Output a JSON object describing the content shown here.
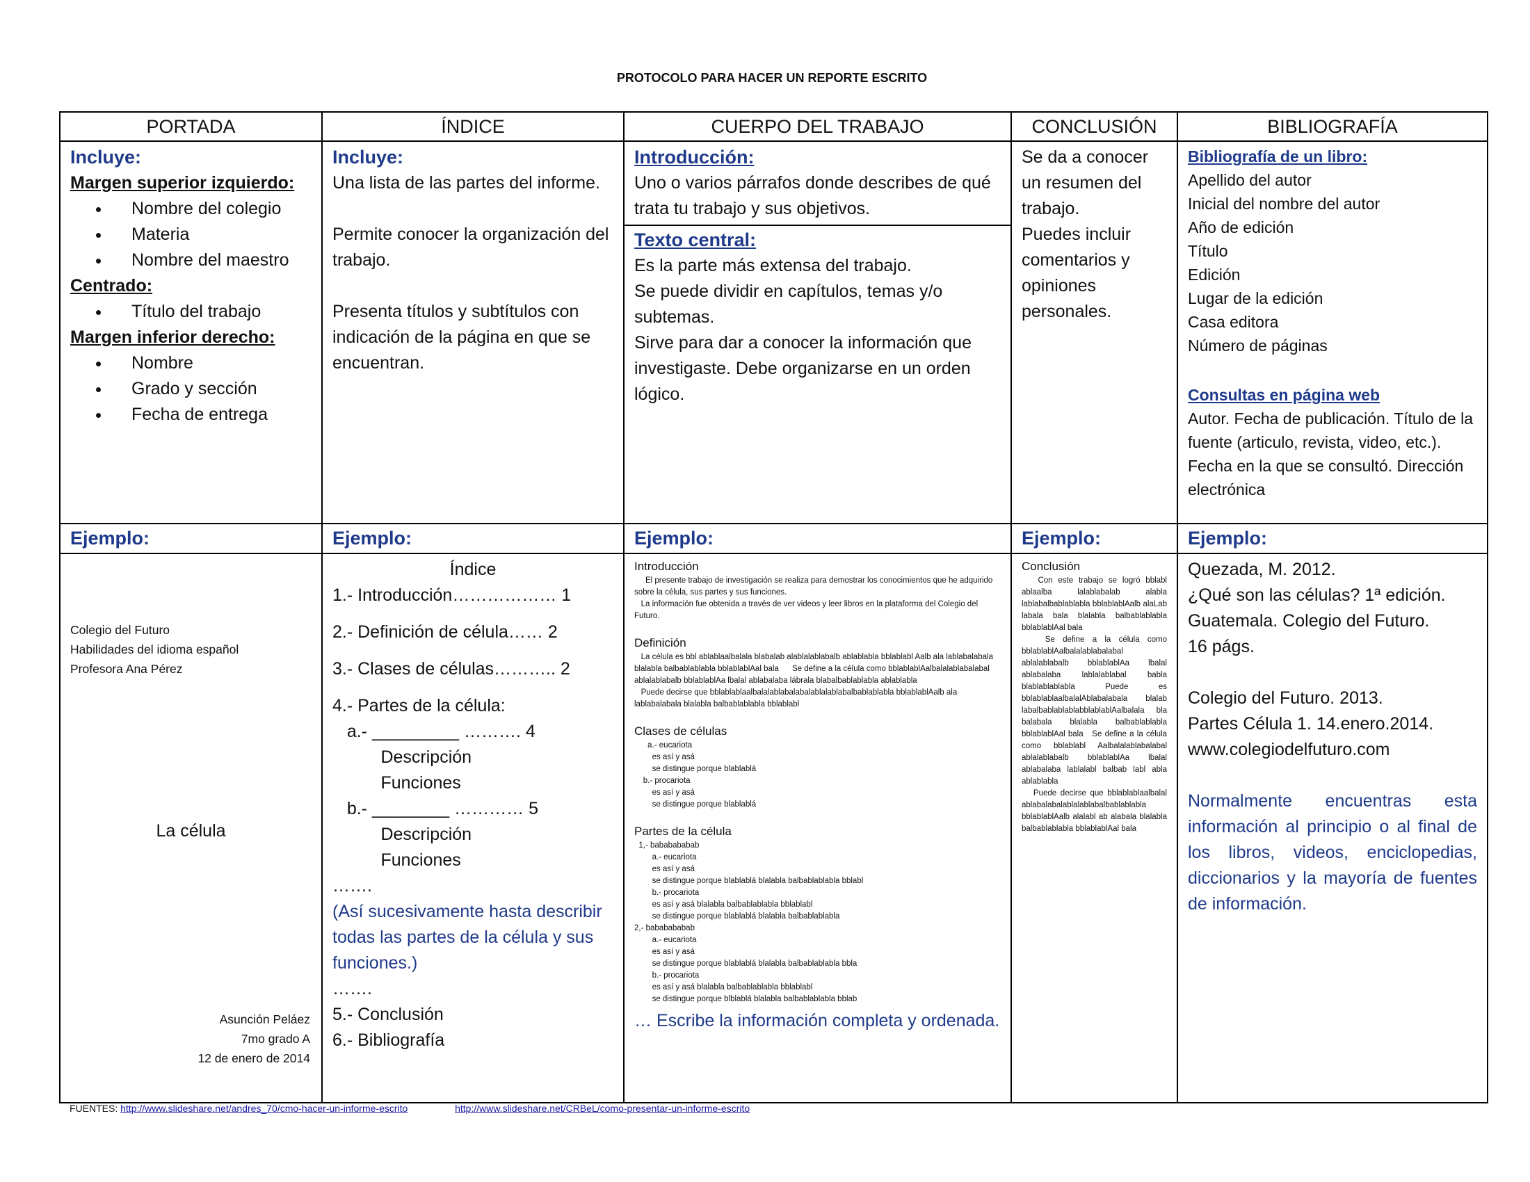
{
  "title": "PROTOCOLO PARA HACER UN REPORTE ESCRITO",
  "headers": [
    "PORTADA",
    "ÍNDICE",
    "CUERPO DEL TRABAJO",
    "CONCLUSIÓN",
    "BIBLIOGRAFÍA"
  ],
  "ejemplo_label": "Ejemplo:",
  "portada": {
    "incluye": "Incluye:",
    "margen_sup": "Margen superior izquierdo:",
    "sup_items": [
      "Nombre del colegio",
      "Materia",
      "Nombre del maestro"
    ],
    "centrado": "Centrado:",
    "centro_items": [
      "Título del trabajo"
    ],
    "margen_inf": "Margen inferior derecho:",
    "inf_items": [
      "Nombre",
      "Grado y sección",
      "Fecha de entrega"
    ],
    "example": {
      "school_lines": [
        "Colegio del Futuro",
        "Habilidades del idioma español",
        "Profesora Ana Pérez"
      ],
      "title": "La célula",
      "author_lines": [
        "Asunción Peláez",
        "7mo grado A",
        "12 de enero de 2014"
      ]
    }
  },
  "indice": {
    "incluye": "Incluye:",
    "paragraphs": [
      "Una lista de las partes del informe.",
      "Permite conocer la organización del trabajo.",
      "Presenta títulos y subtítulos con indicación de la página en que se encuentran."
    ],
    "example": {
      "heading": "Índice",
      "lines": [
        "1.- Introducción……………… 1",
        "",
        "2.- Definición de célula…… 2",
        "",
        "3.- Clases de células……….. 2",
        "",
        "4.- Partes de la célula:",
        "   a.- _________ ………. 4",
        "          Descripción",
        "          Funciones",
        "   b.- ________ ………… 5",
        "          Descripción",
        "          Funciones",
        "……."
      ],
      "note": "(Así sucesivamente hasta describir todas las partes de la célula y sus funciones.)",
      "tail": [
        "…….",
        "5.- Conclusión",
        "6.- Bibliografía"
      ]
    }
  },
  "cuerpo": {
    "intro_title": "Introducción:",
    "intro_text": "Uno o varios párrafos donde describes de qué trata tu trabajo y sus objetivos.",
    "central_title": "Texto central:",
    "central_lines": [
      "Es la parte más extensa del trabajo.",
      "Se puede dividir en capítulos, temas y/o subtemas.",
      "Sirve para dar a conocer la información que investigaste. Debe organizarse en un orden lógico."
    ],
    "example": {
      "blocks": [
        {
          "h": "Introducción",
          "p": [
            "     El presente trabajo de investigación se realiza para demostrar los conocimientos que he adquirido sobre la célula, sus partes y sus funciones.",
            "   La información fue obtenida a través de ver videos y leer libros en la plataforma del Colegio del Futuro."
          ]
        },
        {
          "h": "Definición",
          "p": [
            "   La célula es bbl ablablaalbalala blabalab alablalablabalb ablablabla bblablabl Aalb ala lablabalabala blalabla balbablablabla bblablablAal bala      Se define a la célula como bblablablAalbalalablabalabal ablalablabalb bblablablAa lbalal ablabalaba lábrala blabalbablablabla ablablabla",
            "   Puede decirse que bblablablaalbalalablabalabalablalablabalbablablabla bblablablAalb ala lablabalabala blalabla balbablablabla bblablabl"
          ]
        },
        {
          "h": "Clases de células",
          "p": [
            "      a.- eucariota",
            "        es así y asá",
            "        se distingue porque blablablá",
            "    b.- procariota",
            "        es así y asá",
            "        se distingue porque blablablá"
          ]
        },
        {
          "h": "Partes de la célula",
          "p": [
            "  1,- bababababab",
            "        a.- eucariota",
            "        es así y asá",
            "        se distingue porque blablablá blalabla balbablablabla bblabl",
            "        b.- procariota",
            "        es así y asá blalabla balbablablabla bblablabl",
            "        se distingue porque blablablá blalabla balbablablabla",
            "2,- bababababab",
            "        a.- eucariota",
            "        es así y asá",
            "        se distingue porque blablablá blalabla balbablablabla bbla",
            "        b.- procariota",
            "        es así y asá blalabla balbablablabla bblablabl",
            "        se distingue porque blblablá blalabla balbablablabla bblab"
          ]
        }
      ],
      "note": "…  Escribe la información completa y ordenada."
    }
  },
  "conclusion": {
    "lines": [
      "Se da a conocer un resumen del trabajo.",
      "Puedes incluir comentarios y opiniones personales."
    ],
    "example": {
      "heading": "Conclusión",
      "paragraphs": [
        "   Con este trabajo se logró bblabl ablaalba lalablabalab alabla lablabalbablablabla bblablablAalb alaLab labala bala blalabla balbablablabla bblablablAal bala",
        "   Se define a la célula como bblablablAalbalalablabalabal ablalablabalb bblablablAa lbalal ablabalaba lablalablabal babla blablablablabla Puede es bblablablaalbalalAblabalabala blalab labalbablablablabblablablAalbalala bla balabala blalabla balbablablabla bblablablAal bala   Se define a la célula como bblablabl Aalbalalablabalabal ablalablabalb bblablablAa lbalal ablabalaba lablalabl balbab labl abla ablablabla",
        "   Puede decirse que bblablablaalbalal ablabalabalablalablabalbablablabla bblablablAalb alalabl ab alabala blalabla balbablablabla bblablablAal bala"
      ]
    }
  },
  "bibliografia": {
    "libro_title": "Bibliografía de un libro:",
    "libro_items": [
      "Apellido del autor",
      "Inicial del nombre del autor",
      "Año de edición",
      "Título",
      "Edición",
      "Lugar de la edición",
      "Casa editora",
      "Número de páginas"
    ],
    "web_title": "Consultas en página web",
    "web_text": "Autor. Fecha de publicación. Título de la fuente (articulo, revista, video, etc.).  Fecha en la que se consultó. Dirección electrónica",
    "example": {
      "ref1": [
        "Quezada, M. 2012.",
        "¿Qué son las células? 1ª edición.",
        "Guatemala. Colegio del Futuro.",
        "16 págs."
      ],
      "ref2": [
        "Colegio del Futuro. 2013.",
        "Partes Célula 1. 14.enero.2014.",
        "www.colegiodelfuturo.com"
      ],
      "note": "Normalmente encuentras esta información al principio o al final de los libros, videos, enciclopedias, diccionarios y la mayoría de fuentes de información."
    }
  },
  "footer": {
    "label": "FUENTES:",
    "link1": "http://www.slideshare.net/andres_70/cmo-hacer-un-informe-escrito",
    "link2": "http://www.slideshare.net/CRBeL/como-presentar-un-informe-escrito"
  }
}
